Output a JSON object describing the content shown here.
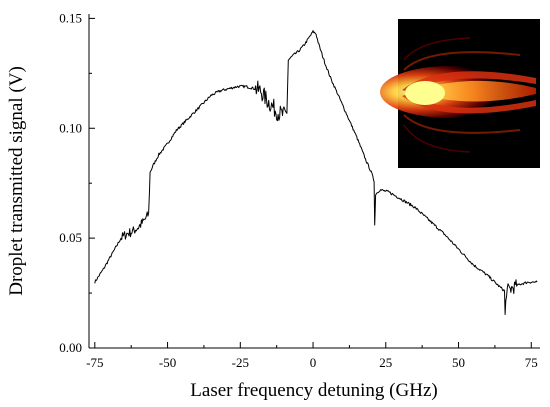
{
  "chart_data": {
    "type": "line",
    "xlabel": "Laser frequency detuning (GHz)",
    "ylabel": "Droplet transmitted signal (V)",
    "xlim": [
      -77,
      78
    ],
    "ylim": [
      0.0,
      0.152
    ],
    "xticks": [
      -75,
      -50,
      -25,
      0,
      25,
      50,
      75
    ],
    "yticks": [
      0.0,
      0.05,
      0.1,
      0.15
    ],
    "xtick_labels": [
      "-75",
      "-50",
      "-25",
      "0",
      "25",
      "50",
      "75"
    ],
    "ytick_labels": [
      "0.00",
      "0.05",
      "0.10",
      "0.15"
    ],
    "grid": false,
    "inset": "thermal-image-heatmap",
    "series": [
      {
        "color": "#000000",
        "points": [
          [
            -75,
            0.03
          ],
          [
            -72,
            0.036
          ],
          [
            -69,
            0.043
          ],
          [
            -66,
            0.05
          ],
          [
            -64,
            0.052
          ],
          [
            -62,
            0.053
          ],
          [
            -60,
            0.055
          ],
          [
            -58,
            0.058
          ],
          [
            -56.5,
            0.061
          ],
          [
            -56,
            0.08
          ],
          [
            -55,
            0.083
          ],
          [
            -53,
            0.088
          ],
          [
            -50,
            0.093
          ],
          [
            -47,
            0.099
          ],
          [
            -44,
            0.103
          ],
          [
            -41,
            0.107
          ],
          [
            -38,
            0.111
          ],
          [
            -35,
            0.115
          ],
          [
            -32,
            0.117
          ],
          [
            -29,
            0.118
          ],
          [
            -26,
            0.119
          ],
          [
            -23,
            0.119
          ],
          [
            -20,
            0.118
          ],
          [
            -18,
            0.117
          ],
          [
            -16,
            0.113
          ],
          [
            -14,
            0.11
          ],
          [
            -12,
            0.107
          ],
          [
            -10,
            0.106
          ],
          [
            -9,
            0.107
          ],
          [
            -8.5,
            0.131
          ],
          [
            -7,
            0.133
          ],
          [
            -5,
            0.135
          ],
          [
            -3,
            0.138
          ],
          [
            -1,
            0.142
          ],
          [
            0,
            0.144
          ],
          [
            1,
            0.143
          ],
          [
            2,
            0.138
          ],
          [
            4,
            0.13
          ],
          [
            6,
            0.123
          ],
          [
            9,
            0.114
          ],
          [
            12,
            0.105
          ],
          [
            15,
            0.096
          ],
          [
            18,
            0.086
          ],
          [
            20,
            0.08
          ],
          [
            21,
            0.076
          ],
          [
            21.2,
            0.056
          ],
          [
            21.5,
            0.07
          ],
          [
            23,
            0.072
          ],
          [
            26,
            0.071
          ],
          [
            30,
            0.068
          ],
          [
            35,
            0.064
          ],
          [
            40,
            0.058
          ],
          [
            45,
            0.052
          ],
          [
            50,
            0.045
          ],
          [
            55,
            0.038
          ],
          [
            60,
            0.033
          ],
          [
            64,
            0.028
          ],
          [
            65.8,
            0.026
          ],
          [
            66,
            0.015
          ],
          [
            66.5,
            0.026
          ],
          [
            68,
            0.027
          ],
          [
            71,
            0.029
          ],
          [
            74,
            0.03
          ],
          [
            77,
            0.03
          ]
        ]
      }
    ]
  }
}
